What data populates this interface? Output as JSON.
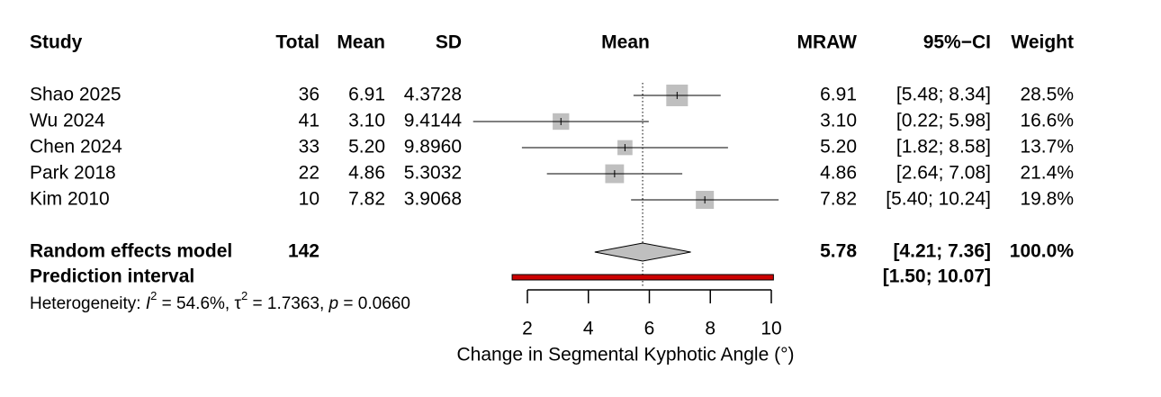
{
  "chart_data": {
    "type": "forest",
    "columns": [
      "Study",
      "Total",
      "Mean",
      "SD",
      "Mean",
      "MRAW",
      "95%−CI",
      "Weight"
    ],
    "studies": [
      {
        "name": "Shao 2025",
        "total": 36,
        "mean": 6.91,
        "sd": 4.3728,
        "ci": [
          5.48,
          8.34
        ],
        "ci_label": "[5.48; 8.34]",
        "weight": {
          "value": 28.5,
          "label": "28.5%"
        }
      },
      {
        "name": "Wu 2024",
        "total": 41,
        "mean": {
          "value": 3.1,
          "label": "3.10"
        },
        "sd": 9.4144,
        "ci": [
          0.22,
          5.98
        ],
        "ci_label": "[0.22; 5.98]",
        "weight": {
          "value": 16.6,
          "label": "16.6%"
        }
      },
      {
        "name": "Chen 2024",
        "total": 33,
        "mean": {
          "value": 5.2,
          "label": "5.20"
        },
        "sd": {
          "value": 9.896,
          "label": "9.8960"
        },
        "ci": [
          1.82,
          8.58
        ],
        "ci_label": "[1.82; 8.58]",
        "weight": {
          "value": 13.7,
          "label": "13.7%"
        }
      },
      {
        "name": "Park 2018",
        "total": 22,
        "mean": 4.86,
        "sd": 5.3032,
        "ci": [
          2.64,
          7.08
        ],
        "ci_label": "[2.64; 7.08]",
        "weight": {
          "value": 21.4,
          "label": "21.4%"
        }
      },
      {
        "name": "Kim 2010",
        "total": 10,
        "mean": 7.82,
        "sd": 3.9068,
        "ci": [
          5.4,
          10.24
        ],
        "ci_label": "[5.40; 10.24]",
        "weight": {
          "value": 19.8,
          "label": "19.8%"
        }
      }
    ],
    "pooled": {
      "name": "Random effects model",
      "total": 142,
      "mean": 5.78,
      "ci": [
        4.21,
        7.36
      ],
      "ci_label": "[4.21; 7.36]",
      "weight": {
        "value": 100,
        "label": "100.0%"
      }
    },
    "prediction": {
      "name": "Prediction interval",
      "ci": [
        1.5,
        10.07
      ],
      "ci_label": "[1.50; 10.07]",
      "color": "#cc0000"
    },
    "heterogeneity": [
      {
        "text": "Heterogeneity: "
      },
      {
        "text": "I",
        "style": "italic"
      },
      {
        "text": "2",
        "style": "sup"
      },
      {
        "text": " = 54.6%, "
      },
      {
        "text": "τ"
      },
      {
        "text": "2",
        "style": "sup"
      },
      {
        "text": " = 1.7363, "
      },
      {
        "text": "p",
        "style": "italic"
      },
      {
        "text": " = 0.0660"
      }
    ],
    "square_color": "#bfbfbf",
    "xlim": [
      2,
      10
    ],
    "xticks": [
      2,
      4,
      6,
      8,
      10
    ],
    "xlabel": "Change in Segmental Kyphotic Angle (°)"
  }
}
